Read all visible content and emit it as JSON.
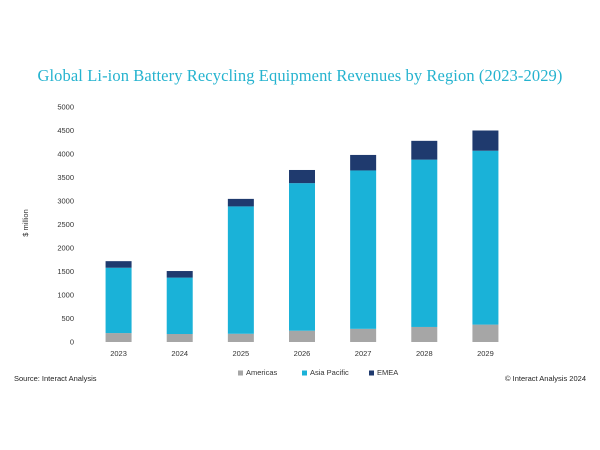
{
  "chart_data": {
    "type": "bar",
    "stacked": true,
    "title": "Global Li-ion Battery Recycling Equipment Revenues by Region (2023-2029)",
    "xlabel": "",
    "ylabel": "$ million",
    "ylim": [
      0,
      5000
    ],
    "yticks": [
      0,
      500,
      1000,
      1500,
      2000,
      2500,
      3000,
      3500,
      4000,
      4500,
      5000
    ],
    "grid": false,
    "legend_position": "bottom-center",
    "categories": [
      "2023",
      "2024",
      "2025",
      "2026",
      "2027",
      "2028",
      "2029"
    ],
    "series": [
      {
        "name": "Americas",
        "color": "#a6a6a6",
        "values": [
          190,
          170,
          175,
          240,
          280,
          320,
          370
        ]
      },
      {
        "name": "Asia Pacific",
        "color": "#1ab2d8",
        "values": [
          1390,
          1200,
          2710,
          3140,
          3370,
          3560,
          3700
        ]
      },
      {
        "name": "EMEA",
        "color": "#1f3a6e",
        "values": [
          140,
          140,
          160,
          280,
          330,
          400,
          430
        ]
      }
    ]
  },
  "footer": {
    "source": "Source: Interact Analysis",
    "copyright": "© Interact Analysis 2024"
  }
}
